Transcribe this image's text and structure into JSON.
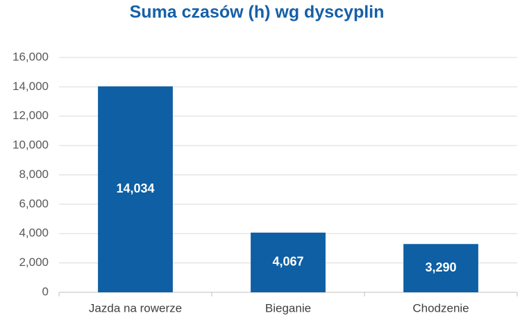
{
  "chart_data": {
    "type": "bar",
    "title": "Suma czasów (h) wg dyscyplin",
    "categories": [
      "Jazda na rowerze",
      "Bieganie",
      "Chodzenie"
    ],
    "values": [
      14034,
      4067,
      3290
    ],
    "value_labels": [
      "14,034",
      "4,067",
      "3,290"
    ],
    "color": "#0e5fa3",
    "ylim": [
      0,
      16000
    ],
    "yticks": [
      0,
      {
        "value": 2000,
        "label": "2,000"
      },
      {
        "value": 4000,
        "label": "4,000"
      },
      {
        "value": 6000,
        "label": "6,000"
      },
      {
        "value": 8000,
        "label": "8,000"
      },
      {
        "value": 10000,
        "label": "10,000"
      },
      {
        "value": 12000,
        "label": "12,000"
      },
      {
        "value": 14000,
        "label": "14,000"
      },
      {
        "value": 16000,
        "label": "16,000"
      }
    ],
    "grid": true
  }
}
